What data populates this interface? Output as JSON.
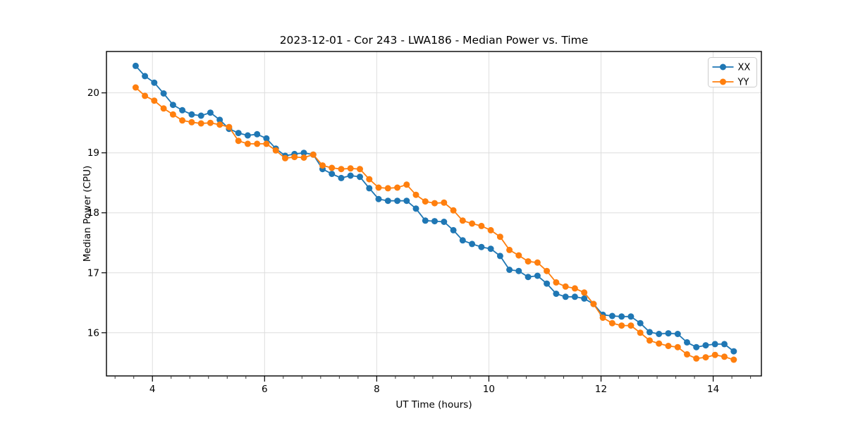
{
  "figure": {
    "background": "#ffffff"
  },
  "chart_data": {
    "type": "line",
    "title": "2023-12-01 - Cor 243 - LWA186 - Median Power vs. Time",
    "xlabel": "UT Time (hours)",
    "ylabel": "Median Power (CPU)",
    "xlim": [
      3.18,
      14.86
    ],
    "ylim": [
      15.28,
      20.69
    ],
    "xticks": [
      4,
      6,
      8,
      10,
      12,
      14
    ],
    "yticks": [
      16,
      17,
      18,
      19,
      20
    ],
    "x_minor_divisions_per_unit": 3,
    "grid": true,
    "grid_color": "#dedede",
    "spine_color": "#000000",
    "legend_position": "upper right",
    "marker": "circle",
    "x": [
      3.7,
      3.867,
      4.033,
      4.2,
      4.367,
      4.533,
      4.7,
      4.867,
      5.033,
      5.2,
      5.367,
      5.533,
      5.7,
      5.867,
      6.033,
      6.2,
      6.367,
      6.533,
      6.7,
      6.867,
      7.033,
      7.2,
      7.367,
      7.533,
      7.7,
      7.867,
      8.033,
      8.2,
      8.367,
      8.533,
      8.7,
      8.867,
      9.033,
      9.2,
      9.367,
      9.533,
      9.7,
      9.867,
      10.033,
      10.2,
      10.367,
      10.533,
      10.7,
      10.867,
      11.033,
      11.2,
      11.367,
      11.533,
      11.7,
      11.867,
      12.033,
      12.2,
      12.367,
      12.533,
      12.7,
      12.867,
      13.033,
      13.2,
      13.367,
      13.533,
      13.7,
      13.867,
      14.033,
      14.2,
      14.367
    ],
    "series": [
      {
        "name": "XX",
        "color": "#1f77b4",
        "values": [
          20.45,
          20.28,
          20.17,
          19.99,
          19.8,
          19.71,
          19.64,
          19.62,
          19.67,
          19.55,
          19.4,
          19.33,
          19.29,
          19.31,
          19.24,
          19.07,
          18.95,
          18.98,
          19.0,
          18.97,
          18.73,
          18.65,
          18.58,
          18.62,
          18.6,
          18.41,
          18.23,
          18.2,
          18.2,
          18.2,
          18.07,
          17.87,
          17.86,
          17.85,
          17.71,
          17.54,
          17.48,
          17.43,
          17.4,
          17.28,
          17.05,
          17.03,
          16.93,
          16.95,
          16.82,
          16.65,
          16.6,
          16.6,
          16.57,
          16.48,
          16.3,
          16.28,
          16.27,
          16.27,
          16.16,
          16.01,
          15.98,
          15.99,
          15.98,
          15.84,
          15.76,
          15.79,
          15.81,
          15.81,
          15.69
        ]
      },
      {
        "name": "YY",
        "color": "#ff7f0e",
        "values": [
          20.09,
          19.95,
          19.87,
          19.74,
          19.64,
          19.54,
          19.51,
          19.49,
          19.5,
          19.47,
          19.43,
          19.2,
          19.15,
          19.15,
          19.15,
          19.04,
          18.91,
          18.93,
          18.92,
          18.97,
          18.79,
          18.75,
          18.73,
          18.74,
          18.73,
          18.56,
          18.42,
          18.41,
          18.42,
          18.47,
          18.3,
          18.19,
          18.16,
          18.17,
          18.04,
          17.87,
          17.82,
          17.78,
          17.71,
          17.6,
          17.38,
          17.29,
          17.19,
          17.17,
          17.03,
          16.84,
          16.77,
          16.74,
          16.67,
          16.48,
          16.25,
          16.16,
          16.12,
          16.12,
          16.0,
          15.87,
          15.82,
          15.78,
          15.76,
          15.64,
          15.57,
          15.59,
          15.63,
          15.6,
          15.55
        ]
      }
    ]
  }
}
